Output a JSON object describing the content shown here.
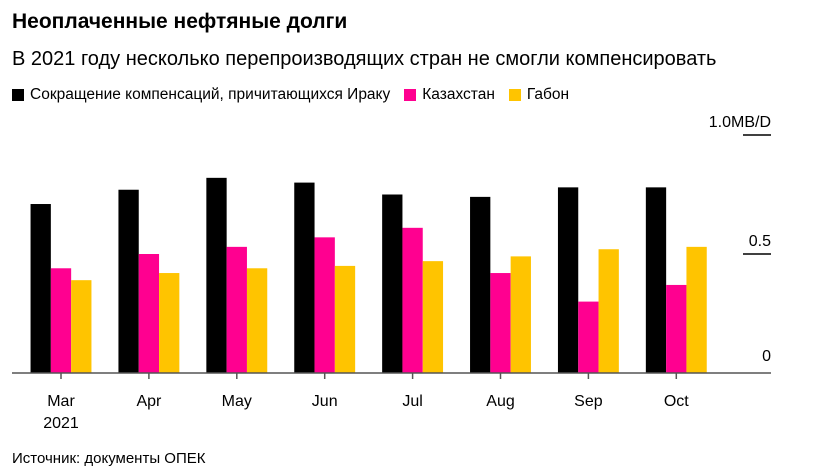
{
  "title": "Неоплаченные нефтяные долги",
  "subtitle": "В 2021 году несколько перепроизводящих стран не смогли компенсировать",
  "source": "Источник: документы ОПЕК",
  "chart_data": {
    "type": "bar",
    "categories": [
      "Mar",
      "Apr",
      "May",
      "Jun",
      "Jul",
      "Aug",
      "Sep",
      "Oct"
    ],
    "category_sublabels": [
      "2021",
      "",
      "",
      "",
      "",
      "",
      "",
      ""
    ],
    "series": [
      {
        "name": "Сокращение компенсаций, причитающихся Ираку",
        "color": "#000000",
        "values": [
          0.71,
          0.77,
          0.82,
          0.8,
          0.75,
          0.74,
          0.78,
          0.78
        ]
      },
      {
        "name": "Казахстан",
        "color": "#ff0090",
        "values": [
          0.44,
          0.5,
          0.53,
          0.57,
          0.61,
          0.42,
          0.3,
          0.37
        ]
      },
      {
        "name": "Габон",
        "color": "#ffc400",
        "values": [
          0.39,
          0.42,
          0.44,
          0.45,
          0.47,
          0.49,
          0.52,
          0.53
        ]
      }
    ],
    "yticks": [
      {
        "value": 0,
        "label": "0"
      },
      {
        "value": 0.5,
        "label": "0.5"
      },
      {
        "value": 1.0,
        "label": "1.0MB/D"
      }
    ],
    "ylim": [
      0,
      1.0
    ],
    "axis_side": "right",
    "legend": "top",
    "grid": false
  }
}
